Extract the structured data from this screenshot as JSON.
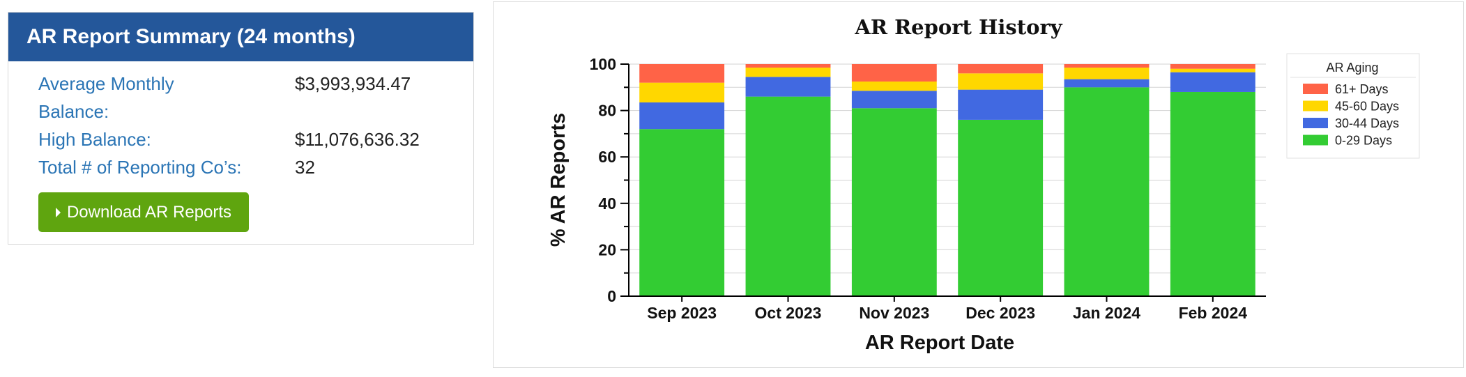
{
  "summary": {
    "title": "AR Report Summary (24 months)",
    "rows": [
      {
        "label": "Average Monthly Balance:",
        "value": "$3,993,934.47"
      },
      {
        "label": "High Balance:",
        "value": "$11,076,636.32"
      },
      {
        "label": "Total # of Reporting Co’s:",
        "value": "32"
      }
    ],
    "download_label": "Download AR Reports",
    "colors": {
      "header": "#24579a",
      "label": "#2b75b5",
      "button": "#5fa50f"
    }
  },
  "chart_data": {
    "type": "bar",
    "stacked": true,
    "title": "AR Report History",
    "xlabel": "AR Report Date",
    "ylabel": "% AR Reports",
    "ylim": [
      0,
      100
    ],
    "yticks": [
      0,
      20,
      40,
      60,
      80,
      100
    ],
    "grid": true,
    "categories": [
      "Sep 2023",
      "Oct 2023",
      "Nov 2023",
      "Dec 2023",
      "Jan 2024",
      "Feb 2024"
    ],
    "series": [
      {
        "name": "0-29 Days",
        "color": "#33cc33",
        "values": [
          72,
          86,
          81,
          76,
          90,
          88
        ]
      },
      {
        "name": "30-44 Days",
        "color": "#4169e1",
        "values": [
          11.5,
          8.5,
          7.5,
          13,
          3.5,
          8.5
        ]
      },
      {
        "name": "45-60 Days",
        "color": "#ffd700",
        "values": [
          8.5,
          4,
          4,
          7,
          5,
          1.5
        ]
      },
      {
        "name": "61+ Days",
        "color": "#ff6347",
        "values": [
          8,
          1.5,
          7.5,
          4,
          1.5,
          2
        ]
      }
    ],
    "legend": {
      "title": "AR Aging",
      "placement": "top-right",
      "order": [
        "61+ Days",
        "45-60 Days",
        "30-44 Days",
        "0-29 Days"
      ]
    }
  }
}
